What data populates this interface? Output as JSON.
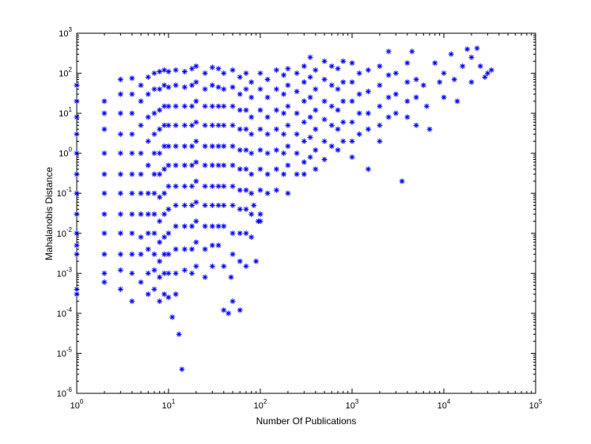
{
  "chart_data": {
    "type": "scatter",
    "title": "",
    "xlabel": "Number Of Publications",
    "ylabel": "Mahalanobis Distance",
    "x_scale": "log",
    "y_scale": "log",
    "xlim": [
      1,
      100000
    ],
    "ylim": [
      1e-06,
      1000
    ],
    "grid": false,
    "marker": "asterisk",
    "color": "#0000ff",
    "x_ticks": [
      {
        "value": 1,
        "base": "10",
        "exp": "0"
      },
      {
        "value": 10,
        "base": "10",
        "exp": "1"
      },
      {
        "value": 100,
        "base": "10",
        "exp": "2"
      },
      {
        "value": 1000,
        "base": "10",
        "exp": "3"
      },
      {
        "value": 10000,
        "base": "10",
        "exp": "4"
      },
      {
        "value": 100000,
        "base": "10",
        "exp": "5"
      }
    ],
    "y_ticks": [
      {
        "value": 1e-06,
        "base": "10",
        "exp": "-6"
      },
      {
        "value": 1e-05,
        "base": "10",
        "exp": "-5"
      },
      {
        "value": 0.0001,
        "base": "10",
        "exp": "-4"
      },
      {
        "value": 0.001,
        "base": "10",
        "exp": "-3"
      },
      {
        "value": 0.01,
        "base": "10",
        "exp": "-2"
      },
      {
        "value": 0.1,
        "base": "10",
        "exp": "-1"
      },
      {
        "value": 1,
        "base": "10",
        "exp": "0"
      },
      {
        "value": 10,
        "base": "10",
        "exp": "1"
      },
      {
        "value": 100,
        "base": "10",
        "exp": "2"
      },
      {
        "value": 1000,
        "base": "10",
        "exp": "3"
      }
    ],
    "points": [
      [
        1,
        50
      ],
      [
        1,
        20
      ],
      [
        1,
        8
      ],
      [
        1,
        3
      ],
      [
        1,
        1
      ],
      [
        1,
        0.3
      ],
      [
        1,
        0.1
      ],
      [
        1,
        0.03
      ],
      [
        1,
        0.01
      ],
      [
        1,
        0.005
      ],
      [
        1,
        0.003
      ],
      [
        1,
        0.0004
      ],
      [
        1,
        0.0003
      ],
      [
        2,
        20
      ],
      [
        2,
        10
      ],
      [
        2,
        4
      ],
      [
        2,
        1
      ],
      [
        2,
        0.3
      ],
      [
        2,
        0.1
      ],
      [
        2,
        0.03
      ],
      [
        2,
        0.01
      ],
      [
        2,
        0.003
      ],
      [
        2,
        0.001
      ],
      [
        2,
        0.0006
      ],
      [
        3,
        70
      ],
      [
        3,
        30
      ],
      [
        3,
        10
      ],
      [
        3,
        3
      ],
      [
        3,
        1
      ],
      [
        3,
        0.3
      ],
      [
        3,
        0.1
      ],
      [
        3,
        0.03
      ],
      [
        3,
        0.01
      ],
      [
        3,
        0.003
      ],
      [
        3,
        0.0012
      ],
      [
        3,
        0.0004
      ],
      [
        4,
        75
      ],
      [
        4,
        30
      ],
      [
        4,
        10
      ],
      [
        4,
        3
      ],
      [
        4,
        1
      ],
      [
        4,
        0.3
      ],
      [
        4,
        0.1
      ],
      [
        4,
        0.03
      ],
      [
        4,
        0.01
      ],
      [
        4,
        0.003
      ],
      [
        4,
        0.001
      ],
      [
        4,
        0.0002
      ],
      [
        5,
        50
      ],
      [
        5,
        20
      ],
      [
        5,
        5
      ],
      [
        5,
        1
      ],
      [
        5,
        0.3
      ],
      [
        5,
        0.1
      ],
      [
        5,
        0.03
      ],
      [
        5,
        0.008
      ],
      [
        5,
        0.003
      ],
      [
        5,
        0.0006
      ],
      [
        6,
        80
      ],
      [
        6,
        30
      ],
      [
        6,
        8
      ],
      [
        6,
        2
      ],
      [
        6,
        0.5
      ],
      [
        6,
        0.1
      ],
      [
        6,
        0.03
      ],
      [
        6,
        0.01
      ],
      [
        6,
        0.004
      ],
      [
        6,
        0.001
      ],
      [
        6,
        0.0003
      ],
      [
        7,
        100
      ],
      [
        7,
        40
      ],
      [
        7,
        10
      ],
      [
        7,
        3
      ],
      [
        7,
        1
      ],
      [
        7,
        0.3
      ],
      [
        7,
        0.1
      ],
      [
        7,
        0.03
      ],
      [
        7,
        0.01
      ],
      [
        7,
        0.003
      ],
      [
        7,
        0.0012
      ],
      [
        7,
        0.0004
      ],
      [
        8,
        110
      ],
      [
        8,
        40
      ],
      [
        8,
        12
      ],
      [
        8,
        4
      ],
      [
        8,
        1
      ],
      [
        8,
        0.3
      ],
      [
        8,
        0.08
      ],
      [
        8,
        0.02
      ],
      [
        8,
        0.006
      ],
      [
        8,
        0.002
      ],
      [
        8,
        0.0008
      ],
      [
        8,
        0.0002
      ],
      [
        9,
        120
      ],
      [
        9,
        50
      ],
      [
        9,
        15
      ],
      [
        9,
        5
      ],
      [
        9,
        1.5
      ],
      [
        9,
        0.4
      ],
      [
        9,
        0.1
      ],
      [
        9,
        0.03
      ],
      [
        9,
        0.008
      ],
      [
        9,
        0.003
      ],
      [
        9,
        0.001
      ],
      [
        9,
        0.0003
      ],
      [
        10,
        110
      ],
      [
        10,
        45
      ],
      [
        10,
        15
      ],
      [
        10,
        5
      ],
      [
        10,
        1.5
      ],
      [
        10,
        0.5
      ],
      [
        10,
        0.15
      ],
      [
        10,
        0.04
      ],
      [
        10,
        0.01
      ],
      [
        10,
        0.003
      ],
      [
        10,
        0.001
      ],
      [
        10,
        0.00025
      ],
      [
        12,
        120
      ],
      [
        12,
        50
      ],
      [
        12,
        15
      ],
      [
        12,
        5
      ],
      [
        12,
        1.5
      ],
      [
        12,
        0.5
      ],
      [
        12,
        0.15
      ],
      [
        12,
        0.05
      ],
      [
        12,
        0.015
      ],
      [
        12,
        0.004
      ],
      [
        12,
        0.001
      ],
      [
        12,
        0.0003
      ],
      [
        13,
        3e-05
      ],
      [
        14,
        4e-06
      ],
      [
        11,
        8e-05
      ],
      [
        15,
        110
      ],
      [
        15,
        45
      ],
      [
        15,
        15
      ],
      [
        15,
        5
      ],
      [
        15,
        1.5
      ],
      [
        15,
        0.5
      ],
      [
        15,
        0.15
      ],
      [
        15,
        0.05
      ],
      [
        15,
        0.015
      ],
      [
        15,
        0.004
      ],
      [
        15,
        0.0012
      ],
      [
        18,
        130
      ],
      [
        18,
        50
      ],
      [
        18,
        15
      ],
      [
        18,
        5
      ],
      [
        18,
        1.5
      ],
      [
        18,
        0.5
      ],
      [
        18,
        0.15
      ],
      [
        18,
        0.05
      ],
      [
        18,
        0.015
      ],
      [
        18,
        0.004
      ],
      [
        18,
        0.001
      ],
      [
        20,
        150
      ],
      [
        20,
        60
      ],
      [
        20,
        20
      ],
      [
        20,
        6
      ],
      [
        20,
        2
      ],
      [
        20,
        0.6
      ],
      [
        20,
        0.2
      ],
      [
        20,
        0.06
      ],
      [
        20,
        0.02
      ],
      [
        20,
        0.006
      ],
      [
        20,
        0.0015
      ],
      [
        25,
        100
      ],
      [
        25,
        40
      ],
      [
        25,
        15
      ],
      [
        25,
        5
      ],
      [
        25,
        1.5
      ],
      [
        25,
        0.5
      ],
      [
        25,
        0.15
      ],
      [
        25,
        0.05
      ],
      [
        25,
        0.015
      ],
      [
        25,
        0.004
      ],
      [
        25,
        0.0008
      ],
      [
        30,
        140
      ],
      [
        30,
        50
      ],
      [
        30,
        15
      ],
      [
        30,
        5
      ],
      [
        30,
        1.5
      ],
      [
        30,
        0.5
      ],
      [
        30,
        0.15
      ],
      [
        30,
        0.05
      ],
      [
        30,
        0.015
      ],
      [
        30,
        0.005
      ],
      [
        30,
        0.0015
      ],
      [
        35,
        130
      ],
      [
        35,
        45
      ],
      [
        35,
        15
      ],
      [
        35,
        5
      ],
      [
        35,
        1.5
      ],
      [
        35,
        0.5
      ],
      [
        35,
        0.15
      ],
      [
        35,
        0.05
      ],
      [
        35,
        0.015
      ],
      [
        35,
        0.005
      ],
      [
        40,
        100
      ],
      [
        40,
        40
      ],
      [
        40,
        15
      ],
      [
        40,
        5
      ],
      [
        40,
        1.5
      ],
      [
        40,
        0.5
      ],
      [
        40,
        0.15
      ],
      [
        40,
        0.05
      ],
      [
        40,
        0.015
      ],
      [
        40,
        0.0015
      ],
      [
        40,
        0.00012
      ],
      [
        45,
        0.0001
      ],
      [
        50,
        0.0002
      ],
      [
        48,
        0.0008
      ],
      [
        50,
        120
      ],
      [
        50,
        45
      ],
      [
        50,
        15
      ],
      [
        50,
        5
      ],
      [
        50,
        1.5
      ],
      [
        50,
        0.5
      ],
      [
        50,
        0.15
      ],
      [
        50,
        0.05
      ],
      [
        50,
        0.01
      ],
      [
        50,
        0.003
      ],
      [
        60,
        80
      ],
      [
        60,
        30
      ],
      [
        60,
        12
      ],
      [
        60,
        4
      ],
      [
        60,
        1.2
      ],
      [
        60,
        0.4
      ],
      [
        60,
        0.12
      ],
      [
        60,
        0.04
      ],
      [
        60,
        0.01
      ],
      [
        60,
        0.002
      ],
      [
        60,
        0.00012
      ],
      [
        70,
        100
      ],
      [
        70,
        40
      ],
      [
        70,
        12
      ],
      [
        70,
        4
      ],
      [
        70,
        1.2
      ],
      [
        70,
        0.4
      ],
      [
        70,
        0.12
      ],
      [
        70,
        0.04
      ],
      [
        70,
        0.01
      ],
      [
        70,
        0.0015
      ],
      [
        80,
        60
      ],
      [
        80,
        25
      ],
      [
        80,
        8
      ],
      [
        80,
        3
      ],
      [
        80,
        1
      ],
      [
        80,
        0.3
      ],
      [
        80,
        0.1
      ],
      [
        80,
        0.03
      ],
      [
        80,
        0.008
      ],
      [
        90,
        0.002
      ],
      [
        95,
        0.02
      ],
      [
        85,
        0.05
      ],
      [
        100,
        100
      ],
      [
        100,
        40
      ],
      [
        100,
        12
      ],
      [
        100,
        4
      ],
      [
        100,
        1.2
      ],
      [
        100,
        0.4
      ],
      [
        100,
        0.12
      ],
      [
        100,
        0.03
      ],
      [
        100,
        0.02
      ],
      [
        120,
        70
      ],
      [
        120,
        25
      ],
      [
        120,
        8
      ],
      [
        120,
        3
      ],
      [
        120,
        1
      ],
      [
        120,
        0.3
      ],
      [
        120,
        0.1
      ],
      [
        150,
        120
      ],
      [
        150,
        40
      ],
      [
        150,
        12
      ],
      [
        150,
        4
      ],
      [
        150,
        1.2
      ],
      [
        150,
        0.4
      ],
      [
        150,
        0.12
      ],
      [
        180,
        90
      ],
      [
        180,
        30
      ],
      [
        180,
        10
      ],
      [
        180,
        3
      ],
      [
        180,
        1
      ],
      [
        180,
        0.3
      ],
      [
        200,
        130
      ],
      [
        200,
        50
      ],
      [
        200,
        15
      ],
      [
        200,
        5
      ],
      [
        200,
        1.5
      ],
      [
        200,
        0.5
      ],
      [
        200,
        0.1
      ],
      [
        250,
        100
      ],
      [
        250,
        35
      ],
      [
        250,
        10
      ],
      [
        250,
        3
      ],
      [
        250,
        1
      ],
      [
        250,
        0.3
      ],
      [
        300,
        150
      ],
      [
        300,
        60
      ],
      [
        300,
        20
      ],
      [
        300,
        6
      ],
      [
        300,
        2
      ],
      [
        300,
        0.6
      ],
      [
        300,
        0.3
      ],
      [
        350,
        250
      ],
      [
        350,
        80
      ],
      [
        350,
        25
      ],
      [
        350,
        8
      ],
      [
        350,
        2.5
      ],
      [
        350,
        0.8
      ],
      [
        400,
        120
      ],
      [
        400,
        40
      ],
      [
        400,
        12
      ],
      [
        400,
        4
      ],
      [
        400,
        1.2
      ],
      [
        400,
        0.4
      ],
      [
        500,
        200
      ],
      [
        500,
        70
      ],
      [
        500,
        20
      ],
      [
        500,
        7
      ],
      [
        500,
        2
      ],
      [
        500,
        0.7
      ],
      [
        600,
        150
      ],
      [
        600,
        50
      ],
      [
        600,
        15
      ],
      [
        600,
        5
      ],
      [
        600,
        1.5
      ],
      [
        700,
        130
      ],
      [
        700,
        40
      ],
      [
        700,
        12
      ],
      [
        700,
        4
      ],
      [
        700,
        1.2
      ],
      [
        800,
        200
      ],
      [
        800,
        60
      ],
      [
        800,
        20
      ],
      [
        800,
        6
      ],
      [
        800,
        2
      ],
      [
        1000,
        180
      ],
      [
        1000,
        60
      ],
      [
        1000,
        20
      ],
      [
        1000,
        6
      ],
      [
        1000,
        2
      ],
      [
        1000,
        0.8
      ],
      [
        1200,
        100
      ],
      [
        1200,
        30
      ],
      [
        1200,
        10
      ],
      [
        1200,
        3
      ],
      [
        1500,
        120
      ],
      [
        1500,
        35
      ],
      [
        1500,
        10
      ],
      [
        1500,
        4
      ],
      [
        1500,
        0.4
      ],
      [
        2000,
        150
      ],
      [
        2000,
        50
      ],
      [
        2000,
        15
      ],
      [
        2000,
        5
      ],
      [
        2000,
        2
      ],
      [
        2500,
        350
      ],
      [
        2500,
        90
      ],
      [
        2500,
        25
      ],
      [
        2500,
        8
      ],
      [
        3000,
        100
      ],
      [
        3000,
        30
      ],
      [
        3000,
        10
      ],
      [
        3500,
        0.2
      ],
      [
        4000,
        180
      ],
      [
        4000,
        60
      ],
      [
        4000,
        20
      ],
      [
        4000,
        8
      ],
      [
        4500,
        350
      ],
      [
        5000,
        70
      ],
      [
        5000,
        25
      ],
      [
        5000,
        5
      ],
      [
        6000,
        50
      ],
      [
        6500,
        15
      ],
      [
        7000,
        4
      ],
      [
        8000,
        180
      ],
      [
        9000,
        60
      ],
      [
        10000,
        100
      ],
      [
        10000,
        25
      ],
      [
        12000,
        300
      ],
      [
        13000,
        70
      ],
      [
        14000,
        20
      ],
      [
        16000,
        150
      ],
      [
        18000,
        400
      ],
      [
        20000,
        250
      ],
      [
        20000,
        60
      ],
      [
        23000,
        420
      ],
      [
        25000,
        150
      ],
      [
        28000,
        80
      ],
      [
        30000,
        100
      ],
      [
        33000,
        120
      ]
    ]
  }
}
